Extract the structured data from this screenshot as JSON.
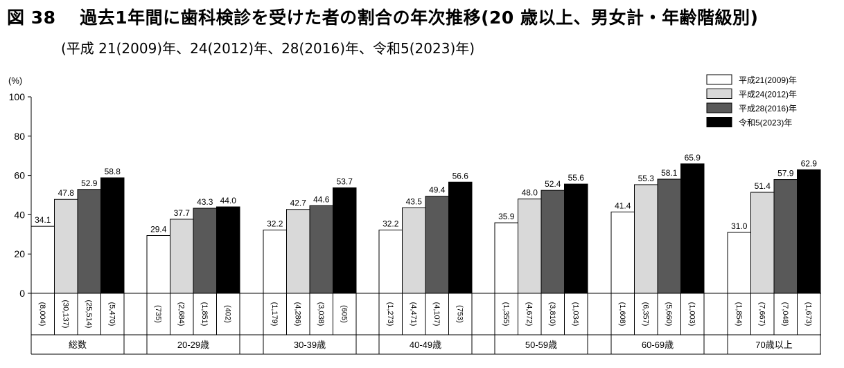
{
  "header": {
    "title": "図 38　 過去1年間に歯科検診を受けた者の割合の年次推移(20 歳以上、男女計・年齢階級別)",
    "subtitle": "(平成 21(2009)年、24(2012)年、28(2016)年、令和5(2023)年)"
  },
  "chart_data": {
    "type": "bar",
    "ylabel": "(%)",
    "ylim": [
      0,
      100
    ],
    "yticks": [
      0,
      20,
      40,
      60,
      80,
      100
    ],
    "grid": false,
    "legend_position": "top-right",
    "categories": [
      "総数",
      "20-29歳",
      "30-39歳",
      "40-49歳",
      "50-59歳",
      "60-69歳",
      "70歳以上"
    ],
    "series": [
      {
        "name": "平成21(2009)年",
        "color": "#ffffff",
        "values": [
          34.1,
          29.4,
          32.2,
          32.2,
          35.9,
          41.4,
          31.0
        ],
        "counts": [
          "(8,004)",
          "(735)",
          "(1,179)",
          "(1,273)",
          "(1,355)",
          "(1,608)",
          "(1,854)"
        ]
      },
      {
        "name": "平成24(2012)年",
        "color": "#d9d9d9",
        "values": [
          47.8,
          37.7,
          42.7,
          43.5,
          48.0,
          55.3,
          51.4
        ],
        "counts": [
          "(30,137)",
          "(2,684)",
          "(4,286)",
          "(4,471)",
          "(4,672)",
          "(6,357)",
          "(7,667)"
        ]
      },
      {
        "name": "平成28(2016)年",
        "color": "#595959",
        "values": [
          52.9,
          43.3,
          44.6,
          49.4,
          52.4,
          58.1,
          57.9
        ],
        "counts": [
          "(25,514)",
          "(1,851)",
          "(3,038)",
          "(4,107)",
          "(3,810)",
          "(5,660)",
          "(7,048)"
        ]
      },
      {
        "name": "令和5(2023)年",
        "color": "#000000",
        "values": [
          58.8,
          44.0,
          53.7,
          56.6,
          55.6,
          65.9,
          62.9
        ],
        "counts": [
          "(5,470)",
          "(402)",
          "(605)",
          "(753)",
          "(1,034)",
          "(1,003)",
          "(1,673)"
        ]
      }
    ]
  }
}
